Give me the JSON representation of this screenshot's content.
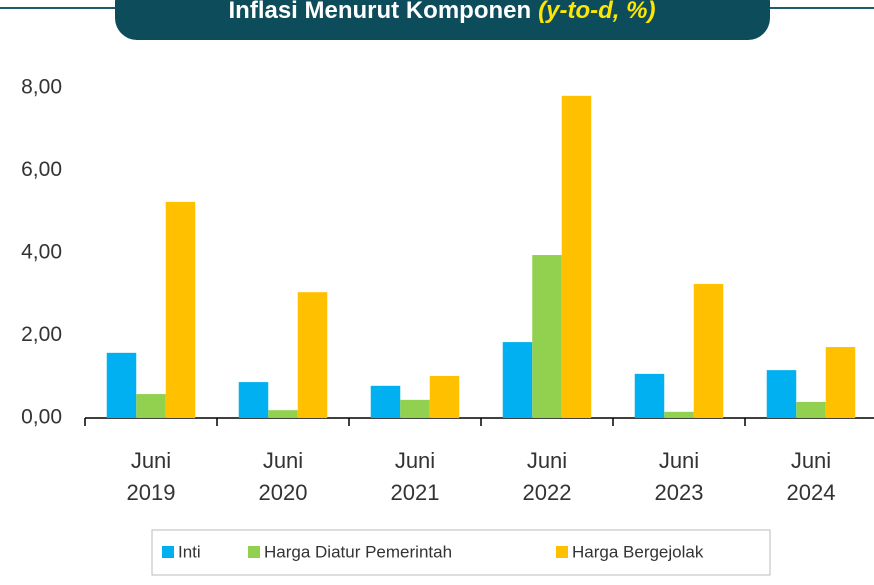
{
  "chart_data": {
    "type": "bar",
    "title": "Inflasi Menurut Komponen",
    "title_unit": "(y-to-d, %)",
    "categories": [
      [
        "Juni",
        "2019"
      ],
      [
        "Juni",
        "2020"
      ],
      [
        "Juni",
        "2021"
      ],
      [
        "Juni",
        "2022"
      ],
      [
        "Juni",
        "2023"
      ],
      [
        "Juni",
        "2024"
      ]
    ],
    "series": [
      {
        "name": "Inti",
        "color": "#00b0f0",
        "values": [
          1.58,
          0.87,
          0.78,
          1.84,
          1.07,
          1.16
        ]
      },
      {
        "name": "Harga Diatur Pemerintah",
        "color": "#92d050",
        "values": [
          0.58,
          0.19,
          0.44,
          3.95,
          0.15,
          0.39
        ]
      },
      {
        "name": "Harga Bergejolak",
        "color": "#ffc000",
        "values": [
          5.24,
          3.05,
          1.02,
          7.81,
          3.25,
          1.72
        ]
      }
    ],
    "ylim": [
      0,
      8
    ],
    "yticks": [
      {
        "value": 0,
        "label": "0,00"
      },
      {
        "value": 2,
        "label": "2,00"
      },
      {
        "value": 4,
        "label": "4,00"
      },
      {
        "value": 6,
        "label": "6,00"
      },
      {
        "value": 8,
        "label": "8,00"
      }
    ],
    "grid": false,
    "legend": "bottom"
  }
}
